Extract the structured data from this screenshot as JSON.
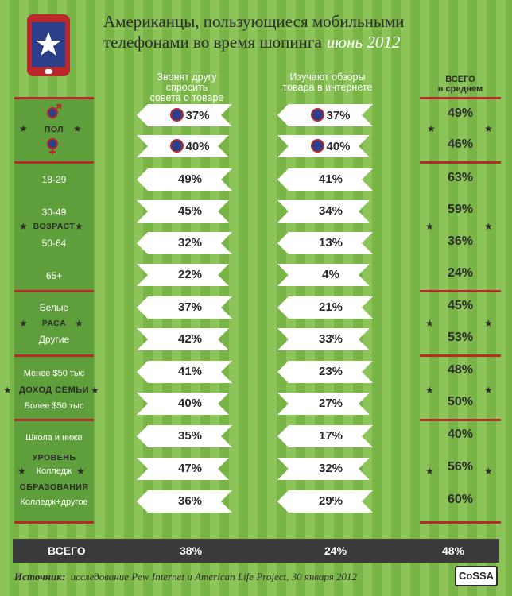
{
  "title": {
    "line1": "Американцы, пользующиеся мобильными",
    "line2": "телефонами во время шопинга",
    "date": "июнь 2012"
  },
  "columns": {
    "col1": {
      "line1": "Звонят другу спросить",
      "line2": "совета о товаре"
    },
    "col2": {
      "line1": "Изучают обзоры",
      "line2": "товара в интернете"
    },
    "avg": {
      "line1": "ВСЕГО",
      "line2": "в среднем"
    }
  },
  "groups": {
    "gender": "ПОЛ",
    "age": "ВОЗРАСТ",
    "race": "РАСА",
    "income": "ДОХОД СЕМЬИ",
    "edu1": "УРОВЕНЬ",
    "edu2": "ОБРАЗОВАНИЯ"
  },
  "rows": [
    {
      "label": "",
      "col1": "37%",
      "col2": "37%",
      "avg": "49%"
    },
    {
      "label": "",
      "col1": "40%",
      "col2": "40%",
      "avg": "46%"
    },
    {
      "label": "18-29",
      "col1": "49%",
      "col2": "41%",
      "avg": "63%"
    },
    {
      "label": "30-49",
      "col1": "45%",
      "col2": "34%",
      "avg": "59%"
    },
    {
      "label": "50-64",
      "col1": "32%",
      "col2": "13%",
      "avg": "36%"
    },
    {
      "label": "65+",
      "col1": "22%",
      "col2": "4%",
      "avg": "24%"
    },
    {
      "label": "Белые",
      "col1": "37%",
      "col2": "21%",
      "avg": "45%"
    },
    {
      "label": "Другие",
      "col1": "42%",
      "col2": "33%",
      "avg": "53%"
    },
    {
      "label": "Менее $50 тыс",
      "col1": "41%",
      "col2": "23%",
      "avg": "48%"
    },
    {
      "label": "Более $50 тыс",
      "col1": "40%",
      "col2": "27%",
      "avg": "50%"
    },
    {
      "label": "Школа и ниже",
      "col1": "35%",
      "col2": "17%",
      "avg": "40%"
    },
    {
      "label": "Колледж",
      "col1": "47%",
      "col2": "32%",
      "avg": "56%"
    },
    {
      "label": "Колледж+другое",
      "col1": "36%",
      "col2": "29%",
      "avg": "60%"
    }
  ],
  "total": {
    "label": "ВСЕГО",
    "col1": "38%",
    "col2": "24%",
    "avg": "48%"
  },
  "source": {
    "prefix": "Источник:",
    "text": "исследование Pew Internet и American Life Project, 30 января 2012"
  },
  "logo": "CoSSA",
  "colors": {
    "stripe_light": "#8cc45a",
    "stripe_dark": "#79b446",
    "panel": "#5f9f3b",
    "accent_red": "#b9282b",
    "dark": "#3a3a3a"
  }
}
